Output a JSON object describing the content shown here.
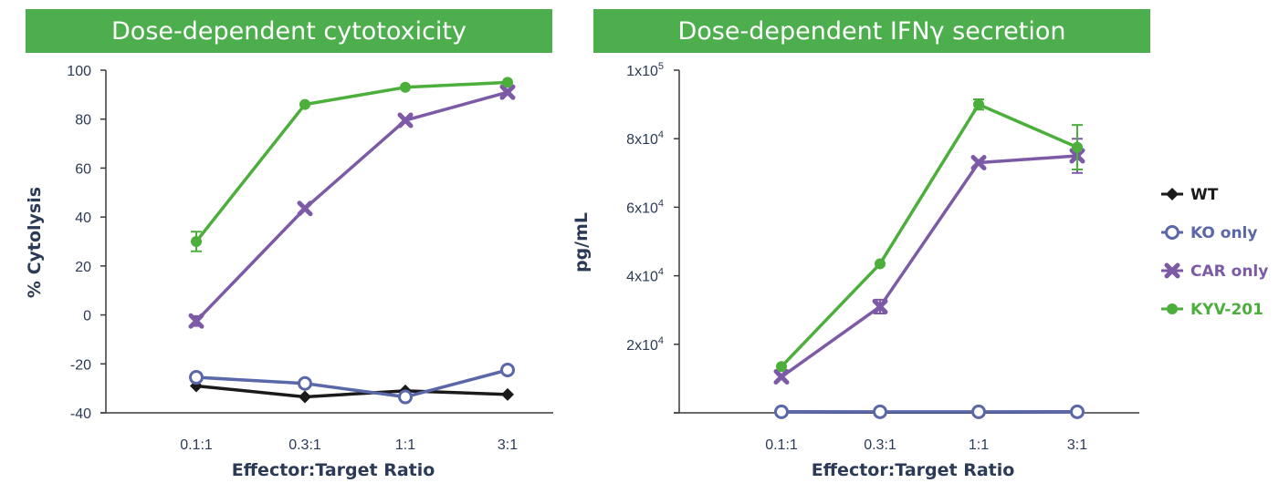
{
  "chart_data": [
    {
      "type": "line",
      "title": "Dose-dependent cytotoxicity",
      "xlabel": "Effector:Target Ratio",
      "ylabel": "% Cytolysis",
      "categories": [
        "0.1:1",
        "0.3:1",
        "1:1",
        "3:1"
      ],
      "ylim": [
        -40,
        100
      ],
      "yticks": [
        "100",
        "80",
        "60",
        "40",
        "20",
        "0",
        "-20",
        "-40"
      ],
      "grid": false,
      "series": [
        {
          "name": "WT",
          "color": "#1a1a1a",
          "marker": "diamond",
          "values": [
            -29,
            -33.5,
            -31,
            -32.5
          ],
          "errors": [
            0,
            0,
            0,
            0
          ]
        },
        {
          "name": "KO only",
          "color": "#5a67a8",
          "marker": "circle-open",
          "values": [
            -25.5,
            -28,
            -33.5,
            -22.5
          ],
          "errors": [
            0,
            0,
            0,
            0
          ]
        },
        {
          "name": "CAR only",
          "color": "#7d5aa6",
          "marker": "cross",
          "values": [
            -2.5,
            43.5,
            79.5,
            91
          ],
          "errors": [
            2,
            0,
            0,
            0
          ]
        },
        {
          "name": "KYV-201",
          "color": "#4caf3c",
          "marker": "circle",
          "values": [
            30,
            86,
            93,
            95
          ],
          "errors": [
            4,
            0,
            0,
            0
          ]
        }
      ]
    },
    {
      "type": "line",
      "title": "Dose-dependent IFNγ secretion",
      "xlabel": "Effector:Target Ratio",
      "ylabel": "pg/mL",
      "categories": [
        "0.1:1",
        "0.3:1",
        "1:1",
        "3:1"
      ],
      "ylim": [
        0,
        100000
      ],
      "yticks": [
        {
          "base": "",
          "exp": ""
        },
        {
          "base": "2x10",
          "exp": "4"
        },
        {
          "base": "4x10",
          "exp": "4"
        },
        {
          "base": "6x10",
          "exp": "4"
        },
        {
          "base": "8x10",
          "exp": "4"
        },
        {
          "base": "1x10",
          "exp": "5"
        }
      ],
      "grid": false,
      "legend_position": "right",
      "series": [
        {
          "name": "WT",
          "color": "#1a1a1a",
          "marker": "diamond",
          "values": [
            300,
            200,
            200,
            300
          ],
          "errors": [
            0,
            0,
            0,
            0
          ]
        },
        {
          "name": "KO only",
          "color": "#5a67a8",
          "marker": "circle-open",
          "values": [
            300,
            300,
            300,
            300
          ],
          "errors": [
            0,
            0,
            0,
            0
          ]
        },
        {
          "name": "CAR only",
          "color": "#7d5aa6",
          "marker": "cross",
          "values": [
            10500,
            31000,
            73000,
            75000
          ],
          "errors": [
            0,
            2000,
            0,
            5000
          ]
        },
        {
          "name": "KYV-201",
          "color": "#4caf3c",
          "marker": "circle",
          "values": [
            13500,
            43500,
            90000,
            77500
          ],
          "errors": [
            0,
            0,
            1500,
            6500
          ]
        }
      ]
    }
  ],
  "legend": [
    {
      "name": "WT",
      "color": "#1a1a1a",
      "marker": "diamond"
    },
    {
      "name": "KO only",
      "color": "#5a67a8",
      "marker": "circle-open"
    },
    {
      "name": "CAR only",
      "color": "#7d5aa6",
      "marker": "cross"
    },
    {
      "name": "KYV-201",
      "color": "#4caf3c",
      "marker": "circle"
    }
  ]
}
